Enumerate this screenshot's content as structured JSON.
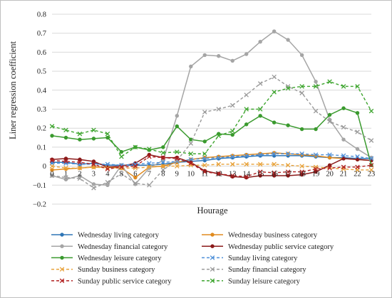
{
  "chart_data": {
    "type": "line",
    "title": "",
    "xlabel": "Hourage",
    "ylabel": "Liner regression coefficient",
    "x": [
      0,
      1,
      2,
      3,
      4,
      5,
      6,
      7,
      8,
      9,
      10,
      11,
      12,
      13,
      14,
      15,
      16,
      17,
      18,
      19,
      20,
      21,
      22,
      23
    ],
    "x_tick_labels": [
      "0",
      "1",
      "2",
      "3",
      "4",
      "5",
      "6",
      "7",
      "8",
      "9",
      "10",
      "11",
      "12",
      "13",
      "14",
      "15",
      "16",
      "17",
      "18",
      "19",
      "20",
      "21",
      "22",
      "23"
    ],
    "ylim": [
      -0.2,
      0.8
    ],
    "y_ticks": [
      -0.2,
      -0.1,
      0,
      0.1,
      0.2,
      0.3,
      0.4,
      0.5,
      0.6,
      0.7,
      0.8
    ],
    "y_tick_labels": [
      "−0.2",
      "−0.1",
      "0",
      "0.1",
      "0.2",
      "0.3",
      "0.4",
      "0.5",
      "0.6",
      "0.7",
      "0.8"
    ],
    "grid": "horizontal",
    "legend_position": "bottom",
    "series": [
      {
        "name": "Wednesday living category",
        "color": "#2E75B6",
        "dash": "solid",
        "marker": "circle",
        "values": [
          0.02,
          0.02,
          0.01,
          0.015,
          0.005,
          0.005,
          0.005,
          0.005,
          0.01,
          0.02,
          0.025,
          0.03,
          0.04,
          0.045,
          0.05,
          0.055,
          0.055,
          0.055,
          0.055,
          0.05,
          0.045,
          0.045,
          0.04,
          0.04
        ]
      },
      {
        "name": "Wednesday business category",
        "color": "#E08A1E",
        "dash": "solid",
        "marker": "circle",
        "values": [
          -0.02,
          -0.015,
          -0.01,
          -0.005,
          -0.005,
          -0.01,
          -0.06,
          -0.005,
          0.0,
          0.02,
          0.035,
          0.045,
          0.05,
          0.055,
          0.06,
          0.065,
          0.07,
          0.065,
          0.06,
          0.055,
          0.045,
          0.04,
          0.035,
          0.03
        ]
      },
      {
        "name": "Wednesday financial category",
        "color": "#A5A5A5",
        "dash": "solid",
        "marker": "circle",
        "values": [
          -0.05,
          -0.07,
          -0.05,
          -0.095,
          -0.1,
          0.005,
          -0.095,
          -0.01,
          0.03,
          0.265,
          0.525,
          0.585,
          0.58,
          0.555,
          0.59,
          0.655,
          0.71,
          0.665,
          0.585,
          0.445,
          0.245,
          0.14,
          0.09,
          0.045
        ]
      },
      {
        "name": "Wednesday public service category",
        "color": "#8B1A1A",
        "dash": "solid",
        "marker": "circle",
        "values": [
          0.035,
          0.04,
          0.035,
          0.025,
          -0.005,
          0.0,
          0.015,
          0.06,
          0.045,
          0.045,
          0.02,
          -0.025,
          -0.04,
          -0.055,
          -0.06,
          -0.05,
          -0.05,
          -0.05,
          -0.045,
          -0.03,
          0.005,
          0.04,
          0.035,
          0.03
        ]
      },
      {
        "name": "Wednesday leisure category",
        "color": "#3A9A2E",
        "dash": "solid",
        "marker": "circle",
        "values": [
          0.16,
          0.15,
          0.14,
          0.145,
          0.15,
          0.075,
          0.1,
          0.085,
          0.1,
          0.21,
          0.14,
          0.13,
          0.17,
          0.165,
          0.22,
          0.265,
          0.23,
          0.215,
          0.195,
          0.195,
          0.27,
          0.305,
          0.28,
          0.005
        ]
      },
      {
        "name": "Sunday living category",
        "color": "#4F90D9",
        "dash": "dashed",
        "marker": "x",
        "values": [
          0.015,
          0.015,
          0.01,
          0.01,
          0.01,
          0.005,
          0.01,
          0.015,
          0.02,
          0.025,
          0.035,
          0.04,
          0.045,
          0.05,
          0.055,
          0.06,
          0.065,
          0.065,
          0.065,
          0.06,
          0.06,
          0.055,
          0.05,
          0.04
        ]
      },
      {
        "name": "Sunday business category",
        "color": "#E8A23A",
        "dash": "dashed",
        "marker": "x",
        "values": [
          0.0,
          -0.01,
          -0.01,
          -0.005,
          -0.01,
          -0.01,
          -0.01,
          -0.005,
          0.0,
          0.0,
          0.005,
          0.005,
          0.01,
          0.01,
          0.01,
          0.01,
          0.01,
          0.005,
          0.0,
          -0.005,
          -0.01,
          -0.015,
          -0.02,
          -0.02
        ]
      },
      {
        "name": "Sunday financial category",
        "color": "#9A9A9A",
        "dash": "dashed",
        "marker": "x",
        "values": [
          -0.05,
          -0.06,
          -0.065,
          -0.115,
          -0.085,
          -0.04,
          -0.09,
          -0.1,
          -0.02,
          0.03,
          0.12,
          0.285,
          0.3,
          0.32,
          0.375,
          0.435,
          0.47,
          0.42,
          0.385,
          0.29,
          0.235,
          0.205,
          0.18,
          0.135
        ]
      },
      {
        "name": "Sunday public service category",
        "color": "#B22222",
        "dash": "dashed",
        "marker": "x",
        "values": [
          0.03,
          0.025,
          0.02,
          0.01,
          -0.015,
          -0.005,
          0.0,
          0.05,
          0.045,
          0.04,
          0.015,
          -0.03,
          -0.04,
          -0.05,
          -0.055,
          -0.03,
          -0.035,
          -0.03,
          -0.03,
          -0.015,
          -0.01,
          -0.005,
          -0.005,
          0.005
        ]
      },
      {
        "name": "Sunday leisure category",
        "color": "#3EA52F",
        "dash": "dashed",
        "marker": "x",
        "values": [
          0.21,
          0.19,
          0.17,
          0.19,
          0.17,
          0.05,
          0.1,
          0.09,
          0.07,
          0.075,
          0.065,
          0.065,
          0.16,
          0.185,
          0.3,
          0.3,
          0.39,
          0.41,
          0.42,
          0.42,
          0.445,
          0.42,
          0.42,
          0.29
        ]
      }
    ]
  }
}
